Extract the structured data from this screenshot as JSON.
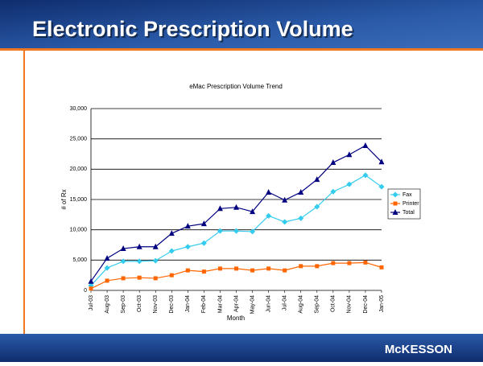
{
  "slide": {
    "title": "Electronic Prescription Volume",
    "logo": "McKESSON"
  },
  "chart_data": {
    "type": "line",
    "title": "eMac Prescription Volume Trend",
    "x_label": "Month",
    "y_label": "# of Rx",
    "categories": [
      "Jul-03",
      "Aug-03",
      "Sep-03",
      "Oct-03",
      "Nov-03",
      "Dec-03",
      "Jan-04",
      "Feb-04",
      "Mar-04",
      "Apr-04",
      "May-04",
      "Jun-04",
      "Jul-04",
      "Aug-04",
      "Sep-04",
      "Oct-04",
      "Nov-04",
      "Dec-04",
      "Jan-05"
    ],
    "series": [
      {
        "name": "Fax",
        "color": "#33ccee",
        "marker": "diamond",
        "values": [
          800,
          3700,
          4800,
          4800,
          4900,
          6500,
          7200,
          7800,
          9800,
          9800,
          9700,
          12300,
          11300,
          11900,
          13800,
          16300,
          17500,
          19000,
          17100
        ]
      },
      {
        "name": "Printer",
        "color": "#ff6600",
        "marker": "square",
        "values": [
          300,
          1600,
          2000,
          2100,
          2000,
          2500,
          3300,
          3100,
          3600,
          3600,
          3300,
          3600,
          3300,
          4000,
          4000,
          4500,
          4500,
          4600,
          3800
        ]
      },
      {
        "name": "Total",
        "color": "#000080",
        "marker": "triangle",
        "values": [
          1500,
          5300,
          6900,
          7200,
          7200,
          9400,
          10600,
          11000,
          13500,
          13700,
          13000,
          16200,
          14900,
          16200,
          18300,
          21100,
          22400,
          23900,
          21200
        ]
      }
    ],
    "ylim": [
      0,
      30000
    ],
    "yticks": [
      0,
      {
        "value": 5000,
        "label": "5,000"
      },
      {
        "value": 10000,
        "label": "10,000"
      },
      {
        "value": 15000,
        "label": "15,000"
      },
      {
        "value": 20000,
        "label": "20,000"
      },
      {
        "value": 25000,
        "label": "25,000"
      },
      {
        "value": 30000,
        "label": "30,000"
      }
    ],
    "grid": true,
    "legend": "right"
  }
}
